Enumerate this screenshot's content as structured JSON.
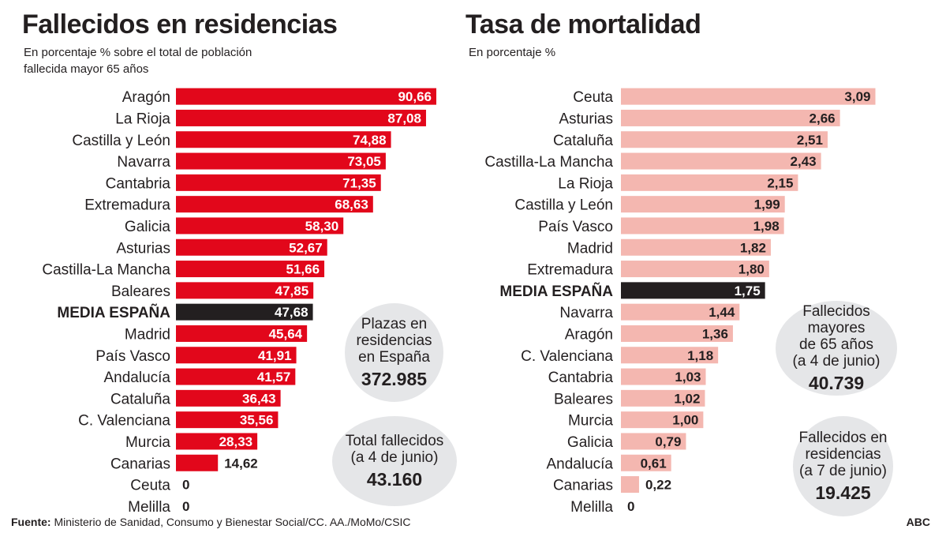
{
  "chart_data": [
    {
      "type": "bar",
      "orientation": "horizontal",
      "title": "Fallecidos en residencias",
      "subtitle": "En porcentaje % sobre el total de población fallecida mayor 65 años",
      "categories": [
        "Aragón",
        "La Rioja",
        "Castilla y León",
        "Navarra",
        "Cantabria",
        "Extremadura",
        "Galicia",
        "Asturias",
        "Castilla-La Mancha",
        "Baleares",
        "MEDIA ESPAÑA",
        "Madrid",
        "País Vasco",
        "Andalucía",
        "Cataluña",
        "C. Valenciana",
        "Murcia",
        "Canarias",
        "Ceuta",
        "Melilla"
      ],
      "values": [
        90.66,
        87.08,
        74.88,
        73.05,
        71.35,
        68.63,
        58.3,
        52.67,
        51.66,
        47.85,
        47.68,
        45.64,
        41.91,
        41.57,
        36.43,
        35.56,
        28.33,
        14.62,
        0,
        0
      ],
      "value_labels": [
        "90,66",
        "87,08",
        "74,88",
        "73,05",
        "71,35",
        "68,63",
        "58,30",
        "52,67",
        "51,66",
        "47,85",
        "47,68",
        "45,64",
        "41,91",
        "41,57",
        "36,43",
        "35,56",
        "28,33",
        "14,62",
        "0",
        "0"
      ],
      "highlight": "MEDIA ESPAÑA",
      "bar_color": "#e2071b",
      "highlight_color": "#231f20",
      "xlim": [
        0,
        100
      ],
      "grid": false
    },
    {
      "type": "bar",
      "orientation": "horizontal",
      "title": "Tasa de mortalidad",
      "subtitle": "En porcentaje %",
      "categories": [
        "Ceuta",
        "Asturias",
        "Cataluña",
        "Castilla-La Mancha",
        "La Rioja",
        "Castilla y León",
        "País Vasco",
        "Madrid",
        "Extremadura",
        "MEDIA ESPAÑA",
        "Navarra",
        "Aragón",
        "C. Valenciana",
        "Cantabria",
        "Baleares",
        "Murcia",
        "Galicia",
        "Andalucía",
        "Canarias",
        "Melilla"
      ],
      "values": [
        3.09,
        2.66,
        2.51,
        2.43,
        2.15,
        1.99,
        1.98,
        1.82,
        1.8,
        1.75,
        1.44,
        1.36,
        1.18,
        1.03,
        1.02,
        1.0,
        0.79,
        0.61,
        0.22,
        0
      ],
      "value_labels": [
        "3,09",
        "2,66",
        "2,51",
        "2,43",
        "2,15",
        "1,99",
        "1,98",
        "1,82",
        "1,80",
        "1,75",
        "1,44",
        "1,36",
        "1,18",
        "1,03",
        "1,02",
        "1,00",
        "0,79",
        "0,61",
        "0,22",
        "0"
      ],
      "highlight": "MEDIA ESPAÑA",
      "bar_color": "#f4b7b0",
      "highlight_color": "#231f20",
      "xlim": [
        0,
        3.2
      ],
      "grid": false
    }
  ],
  "bubbles": {
    "plazas": {
      "text": "Plazas en\nresidencias\nen España",
      "value": "372.985"
    },
    "total": {
      "text": "Total fallecidos\n(a 4 de junio)",
      "value": "43.160"
    },
    "mayores": {
      "text": "Fallecidos mayores\nde 65 años\n(a 4 de junio)",
      "value": "40.739"
    },
    "residencias": {
      "text": "Fallecidos en\nresidencias\n(a 7 de junio)",
      "value": "19.425"
    }
  },
  "footer": {
    "source_label": "Fuente:",
    "source_text": " Ministerio de Sanidad, Consumo y Bienestar Social/CC. AA./MoMo/CSIC",
    "logo": "ABC"
  }
}
